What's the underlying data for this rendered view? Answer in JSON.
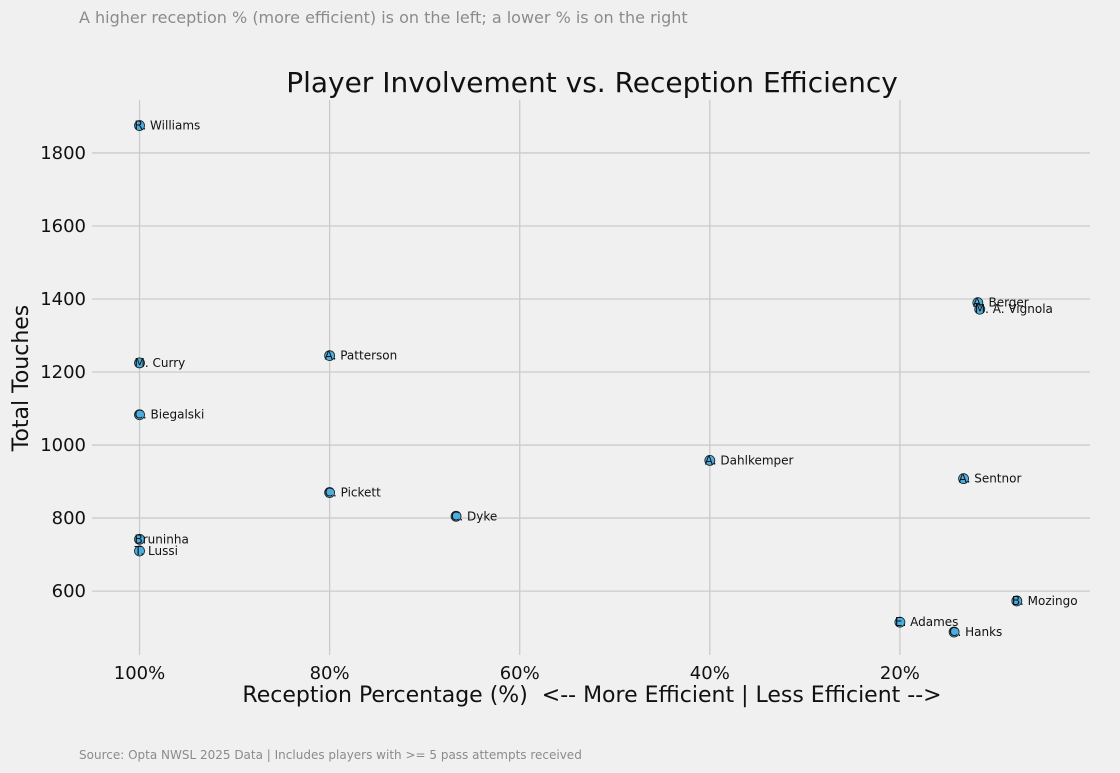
{
  "subtitle": "A higher reception % (more efficient) is on the left; a lower % is on the right",
  "source": "Source: Opta NWSL 2025 Data | Includes players with >= 5 pass attempts received",
  "colors": {
    "background": "#f0f0f0",
    "point_fill": "#4aaee0",
    "point_stroke": "#1a1a1a",
    "grid": "#cbcbcb",
    "muted_text": "#8b8b8b"
  },
  "chart_data": {
    "type": "scatter",
    "title": "Player Involvement vs. Reception Efficiency",
    "xlabel": "Reception Percentage (%)  <-- More Efficient | Less Efficient -->",
    "ylabel": "Total Touches",
    "x_inverted": true,
    "xlim": [
      105,
      0
    ],
    "ylim": [
      425,
      1945
    ],
    "grid": true,
    "x_ticks": [
      100,
      80,
      60,
      40,
      20
    ],
    "x_tick_labels": [
      "100%",
      "80%",
      "60%",
      "40%",
      "20%"
    ],
    "y_ticks": [
      600,
      800,
      1000,
      1200,
      1400,
      1600,
      1800
    ],
    "y_tick_labels": [
      "600",
      "800",
      "1000",
      "1200",
      "1400",
      "1600",
      "1800"
    ],
    "points": [
      {
        "label": "R. Williams",
        "x": 100,
        "y": 1875
      },
      {
        "label": "A. Berger",
        "x": 11.8,
        "y": 1390
      },
      {
        "label": "M. A. Vignola",
        "x": 11.6,
        "y": 1372
      },
      {
        "label": "A. Patterson",
        "x": 80,
        "y": 1245
      },
      {
        "label": "M. Curry",
        "x": 100,
        "y": 1225
      },
      {
        "label": "C. Biegalski",
        "x": 100,
        "y": 1083
      },
      {
        "label": "A. Dahlkemper",
        "x": 40,
        "y": 958
      },
      {
        "label": "A. Sentnor",
        "x": 13.3,
        "y": 908
      },
      {
        "label": "C. Pickett",
        "x": 80,
        "y": 870
      },
      {
        "label": "C. Dyke",
        "x": 66.7,
        "y": 805
      },
      {
        "label": "Bruninha",
        "x": 100,
        "y": 742
      },
      {
        "label": "T. Lussi",
        "x": 100,
        "y": 710
      },
      {
        "label": "B. Mozingo",
        "x": 7.7,
        "y": 573
      },
      {
        "label": "E. Adames",
        "x": 20,
        "y": 515
      },
      {
        "label": "C. Hanks",
        "x": 14.3,
        "y": 488
      }
    ]
  }
}
